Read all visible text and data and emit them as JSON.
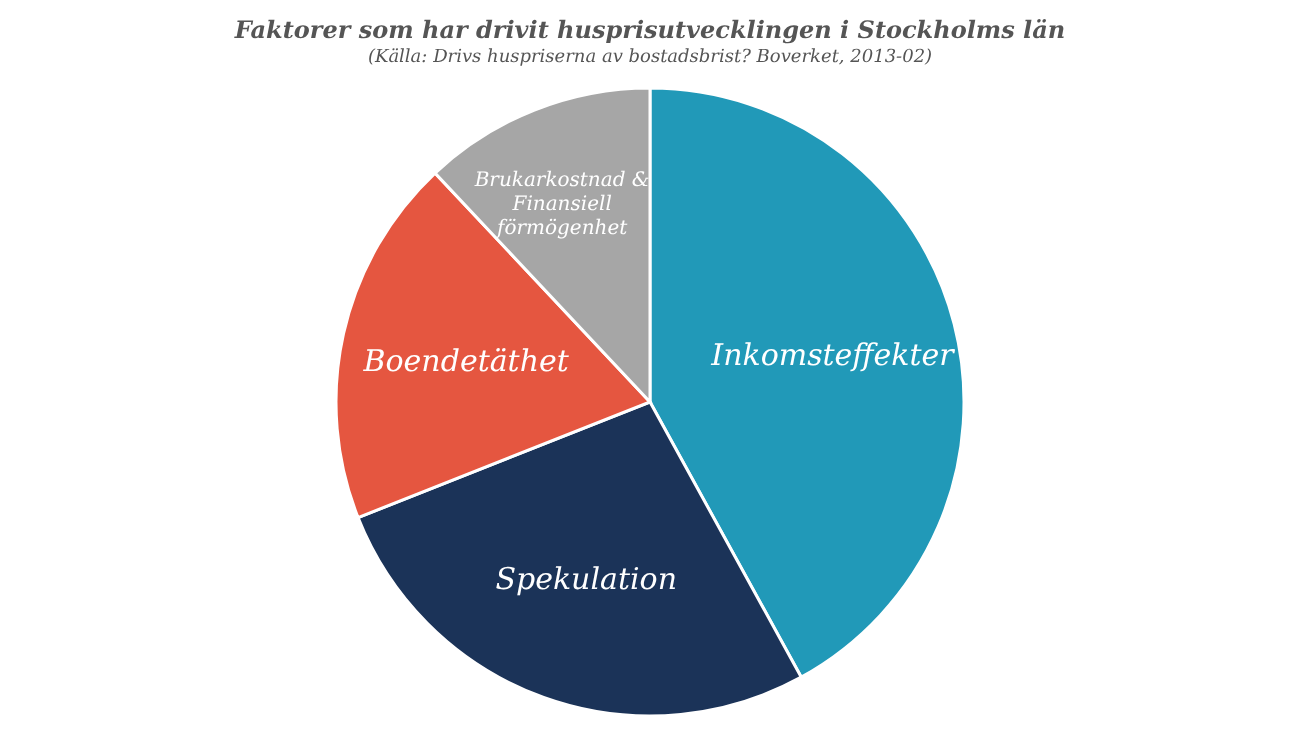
{
  "chart_data": {
    "type": "pie",
    "title": "Faktorer som har drivit husprisutvecklingen i Stockholms län",
    "subtitle": "(Källa: Drivs huspriserna av bostadsbrist? Boverket, 2013-02)",
    "categories": [
      "Inkomsteffekter",
      "Spekulation",
      "Boendetäthet",
      "Brukarkostnad & Finansiell förmögenhet"
    ],
    "values": [
      42,
      27,
      19,
      12
    ],
    "colors": [
      "#2199b8",
      "#1b3358",
      "#e55640",
      "#a6a6a6"
    ]
  }
}
